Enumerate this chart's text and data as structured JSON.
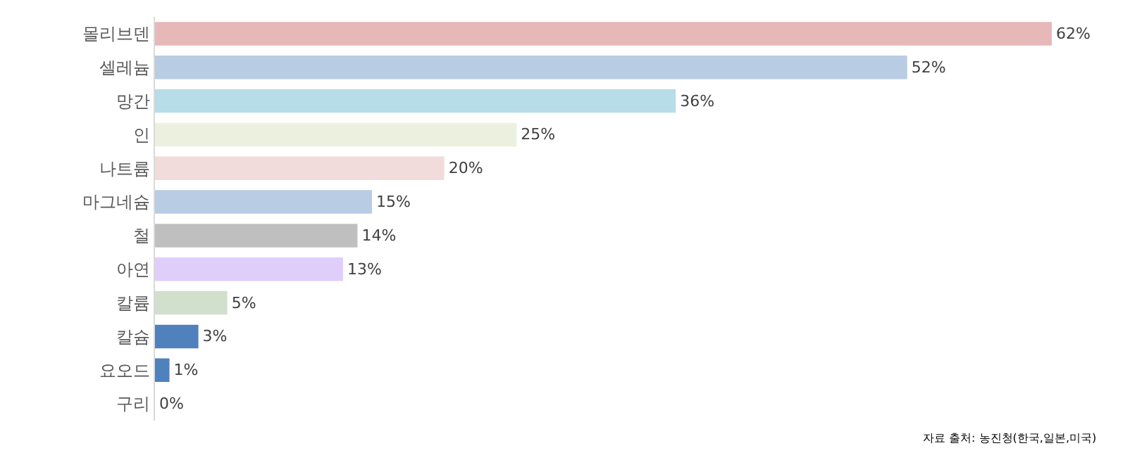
{
  "chart_data": {
    "type": "bar",
    "orientation": "horizontal",
    "categories": [
      "몰리브덴",
      "셀레늄",
      "망간",
      "인",
      "나트륨",
      "마그네슘",
      "철",
      "아연",
      "칼륨",
      "칼슘",
      "요오드",
      "구리"
    ],
    "values": [
      62,
      52,
      36,
      25,
      20,
      15,
      14,
      13,
      5,
      3,
      1,
      0
    ],
    "value_labels": [
      "62%",
      "52%",
      "36%",
      "25%",
      "20%",
      "15%",
      "14%",
      "13%",
      "5%",
      "3%",
      "1%",
      "0%"
    ],
    "colors": [
      "#e6b8b7",
      "#b8cce4",
      "#b7dde8",
      "#ebf1de",
      "#f2dcdb",
      "#b8cce4",
      "#bfbfbf",
      "#dfcdfc",
      "#d0e0cc",
      "#4f81bd",
      "#4f81bd",
      "#4f81bd"
    ],
    "tick_labels": "y",
    "annotations": [
      "자료 출처: 농진청(한국,일본,미국)"
    ]
  }
}
